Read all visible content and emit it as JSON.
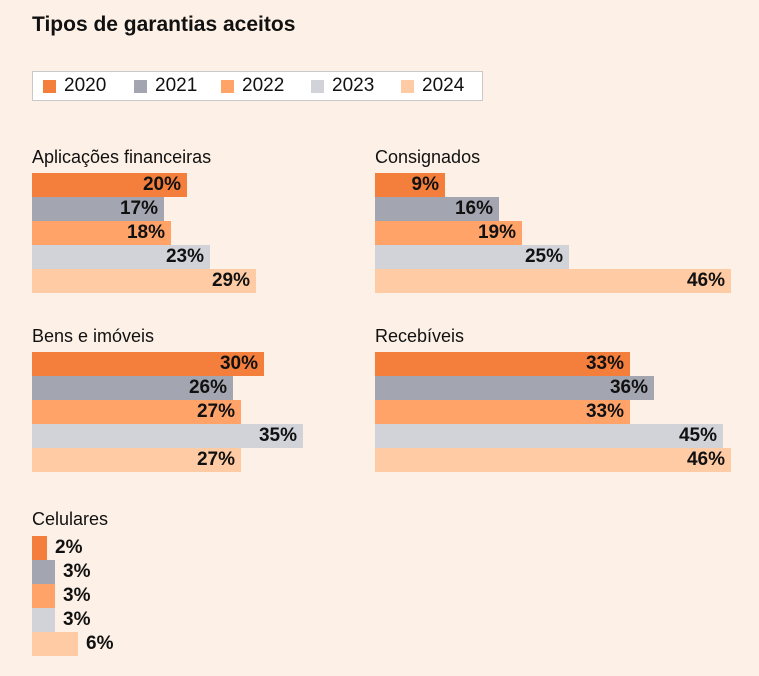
{
  "chart_data": {
    "type": "bar",
    "title": "Tipos de garantias aceitos",
    "colors": {
      "2020": "#f47e3c",
      "2021": "#a3a6b0",
      "2022": "#ffa369",
      "2023": "#d1d3d9",
      "2024": "#ffcba4"
    },
    "legend": [
      "2020",
      "2021",
      "2022",
      "2023",
      "2024"
    ],
    "legend_position": "top-left",
    "grid": false,
    "xlim": [
      0,
      50
    ],
    "panels": [
      {
        "name": "Aplicações financeiras",
        "values": [
          20,
          17,
          18,
          23,
          29
        ],
        "labels": [
          "20%",
          "17%",
          "18%",
          "23%",
          "29%"
        ]
      },
      {
        "name": "Consignados",
        "values": [
          9,
          16,
          19,
          25,
          46
        ],
        "labels": [
          "9%",
          "16%",
          "19%",
          "25%",
          "46%"
        ]
      },
      {
        "name": "Bens e imóveis",
        "values": [
          30,
          26,
          27,
          35,
          27
        ],
        "labels": [
          "30%",
          "26%",
          "27%",
          "35%",
          "27%"
        ]
      },
      {
        "name": "Recebíveis",
        "values": [
          33,
          36,
          33,
          45,
          46
        ],
        "labels": [
          "33%",
          "36%",
          "33%",
          "45%",
          "46%"
        ]
      },
      {
        "name": "Celulares",
        "values": [
          2,
          3,
          3,
          3,
          6
        ],
        "labels": [
          "2%",
          "3%",
          "3%",
          "3%",
          "6%"
        ]
      }
    ]
  }
}
